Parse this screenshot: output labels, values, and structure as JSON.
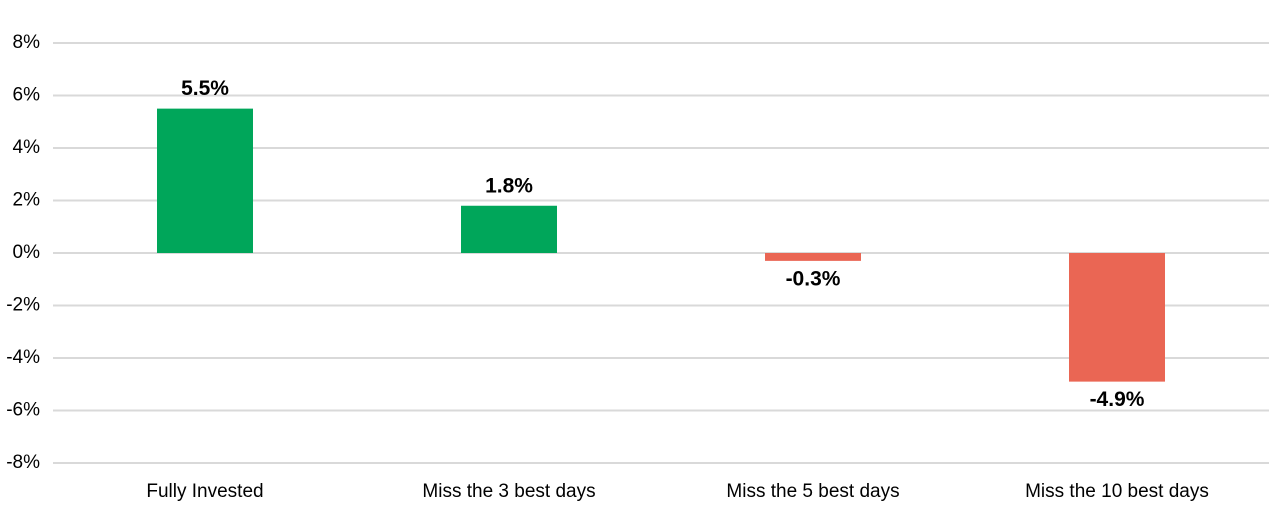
{
  "chart_data": {
    "type": "bar",
    "categories": [
      "Fully Invested",
      "Miss the 3 best days",
      "Miss the 5 best days",
      "Miss the 10 best days"
    ],
    "values": [
      5.5,
      1.8,
      -0.3,
      -4.9
    ],
    "value_labels": [
      "5.5%",
      "1.8%",
      "-0.3%",
      "-4.9%"
    ],
    "colors": [
      "#00a65a",
      "#00a65a",
      "#ea6654",
      "#ea6654"
    ],
    "ylim": [
      -8,
      8
    ],
    "yticks": [
      {
        "value": 8,
        "label": "8%"
      },
      {
        "value": 6,
        "label": "6%"
      },
      {
        "value": 4,
        "label": "4%"
      },
      {
        "value": 2,
        "label": "2%"
      },
      {
        "value": 0,
        "label": "0%"
      },
      {
        "value": -2,
        "label": "-2%"
      },
      {
        "value": -4,
        "label": "-4%"
      },
      {
        "value": -6,
        "label": "-6%"
      },
      {
        "value": -8,
        "label": "-8%"
      }
    ],
    "grid": true
  }
}
